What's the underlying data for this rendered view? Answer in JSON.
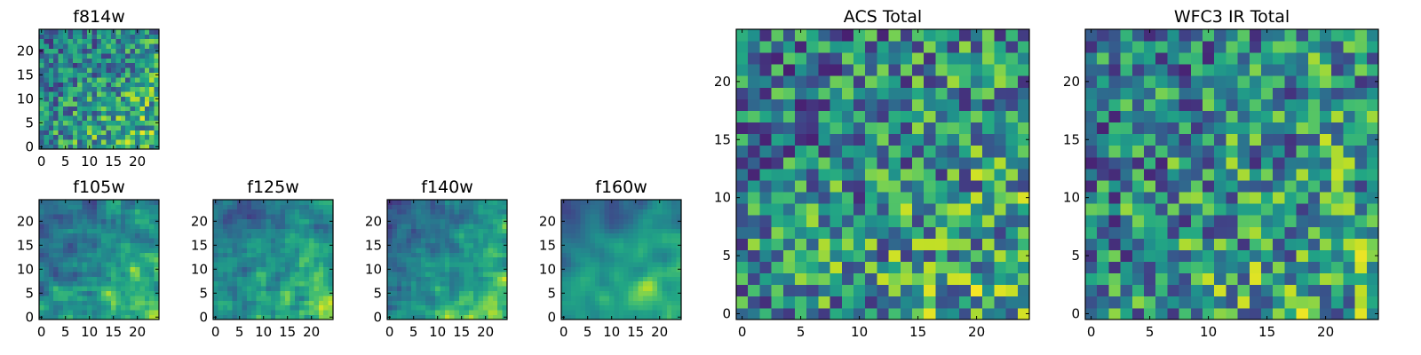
{
  "figure_caption": "",
  "chart_data": [
    {
      "type": "heatmap",
      "title": "f814w",
      "grid_size": 25,
      "seed": 11,
      "gradient": 0.55,
      "smooth": 0,
      "x_ticks": [
        "0",
        "5",
        "10",
        "15",
        "20"
      ],
      "y_ticks": [
        "0",
        "5",
        "10",
        "15",
        "20"
      ],
      "xlim": [
        -0.5,
        24.5
      ],
      "ylim": [
        -0.5,
        24.5
      ],
      "colormap": "viridis"
    },
    {
      "type": "heatmap",
      "title": "f105w",
      "grid_size": 25,
      "seed": 23,
      "gradient": 0.75,
      "smooth": 1,
      "x_ticks": [
        "0",
        "5",
        "10",
        "15",
        "20"
      ],
      "y_ticks": [
        "0",
        "5",
        "10",
        "15",
        "20"
      ],
      "xlim": [
        -0.5,
        24.5
      ],
      "ylim": [
        -0.5,
        24.5
      ],
      "colormap": "viridis"
    },
    {
      "type": "heatmap",
      "title": "f125w",
      "grid_size": 25,
      "seed": 37,
      "gradient": 0.75,
      "smooth": 1,
      "x_ticks": [
        "0",
        "5",
        "10",
        "15",
        "20"
      ],
      "y_ticks": [
        "0",
        "5",
        "10",
        "15",
        "20"
      ],
      "xlim": [
        -0.5,
        24.5
      ],
      "ylim": [
        -0.5,
        24.5
      ],
      "colormap": "viridis"
    },
    {
      "type": "heatmap",
      "title": "f140w",
      "grid_size": 25,
      "seed": 41,
      "gradient": 0.8,
      "smooth": 1,
      "x_ticks": [
        "0",
        "5",
        "10",
        "15",
        "20"
      ],
      "y_ticks": [
        "0",
        "5",
        "10",
        "15",
        "20"
      ],
      "xlim": [
        -0.5,
        24.5
      ],
      "ylim": [
        -0.5,
        24.5
      ],
      "colormap": "viridis"
    },
    {
      "type": "heatmap",
      "title": "f160w",
      "grid_size": 25,
      "seed": 53,
      "gradient": 0.9,
      "smooth": 2,
      "x_ticks": [
        "0",
        "5",
        "10",
        "15",
        "20"
      ],
      "y_ticks": [
        "0",
        "5",
        "10",
        "15",
        "20"
      ],
      "xlim": [
        -0.5,
        24.5
      ],
      "ylim": [
        -0.5,
        24.5
      ],
      "colormap": "viridis"
    },
    {
      "type": "heatmap",
      "title": "ACS Total",
      "grid_size": 25,
      "seed": 67,
      "gradient": 0.35,
      "smooth": 0,
      "x_ticks": [
        "0",
        "5",
        "10",
        "15",
        "20"
      ],
      "y_ticks": [
        "0",
        "5",
        "10",
        "15",
        "20"
      ],
      "xlim": [
        -0.5,
        24.5
      ],
      "ylim": [
        -0.5,
        24.5
      ],
      "colormap": "viridis"
    },
    {
      "type": "heatmap",
      "title": "WFC3 IR Total",
      "grid_size": 25,
      "seed": 79,
      "gradient": 0.35,
      "smooth": 0,
      "x_ticks": [
        "0",
        "5",
        "10",
        "15",
        "20"
      ],
      "y_ticks": [
        "0",
        "5",
        "10",
        "15",
        "20"
      ],
      "xlim": [
        -0.5,
        24.5
      ],
      "ylim": [
        -0.5,
        24.5
      ],
      "colormap": "viridis"
    }
  ]
}
